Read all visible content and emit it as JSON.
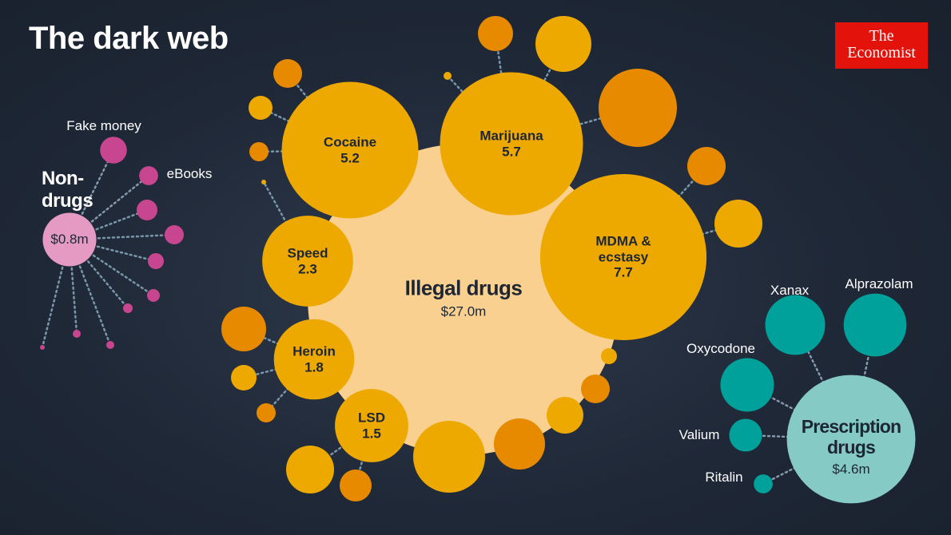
{
  "chart_data": {
    "type": "bubble",
    "title": "The dark web",
    "brand": [
      "The",
      "Economist"
    ],
    "groups": [
      {
        "name": "Illegal drugs",
        "value": 27.0,
        "value_label": "$27.0m",
        "color": "#f9d08f",
        "item_color": "#eea900",
        "categories": [
          "Cocaine",
          "Marijuana",
          "MDMA & ecstasy",
          "Speed",
          "Heroin",
          "LSD"
        ],
        "values": [
          5.2,
          5.7,
          7.7,
          2.3,
          1.8,
          1.5
        ]
      },
      {
        "name": "Non-drugs",
        "value": 0.8,
        "value_label": "$0.8m",
        "color": "#e59ac4",
        "item_color": "#c7468f",
        "categories": [
          "Fake money",
          "eBooks"
        ],
        "values": [
          0.2,
          0.1
        ]
      },
      {
        "name": "Prescription drugs",
        "value": 4.6,
        "value_label": "$4.6m",
        "color": "#86cac6",
        "item_color": "#00a19a",
        "categories": [
          "Xanax",
          "Alprazolam",
          "Oxycodone",
          "Valium",
          "Ritalin"
        ],
        "values": [
          1.0,
          1.1,
          0.8,
          0.3,
          0.1
        ]
      }
    ]
  }
}
